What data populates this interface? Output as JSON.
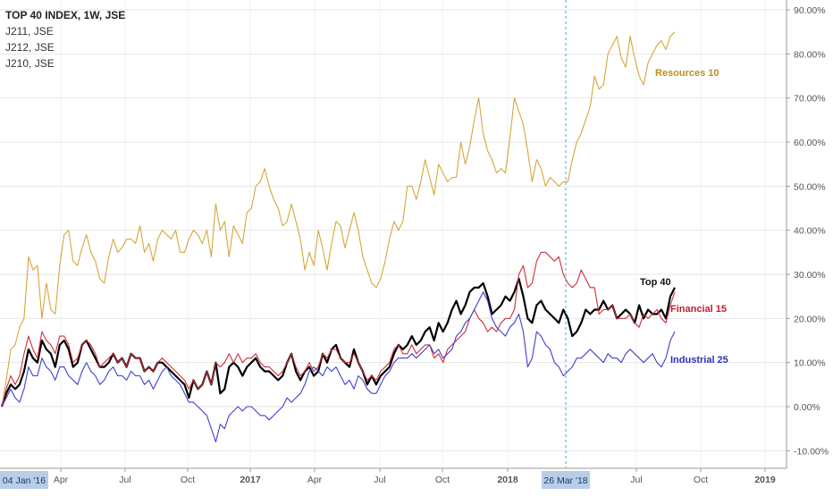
{
  "legend": {
    "line1": "TOP 40 INDEX, 1W, JSE",
    "line2": "J211, JSE",
    "line3": "J212, JSE",
    "line4": "J210, JSE"
  },
  "colors": {
    "top40": "#000000",
    "financial": "#cc2f3a",
    "industrial": "#3f3fcf",
    "resources": "#d4a73a",
    "grid": "#e6e6e6",
    "crosshair": "#4aa3df",
    "badge_bg": "#b7cde8",
    "badge_text": "#1d3c66"
  },
  "chart_data": {
    "type": "line",
    "y_unit": "%",
    "ylim": [
      -12,
      91
    ],
    "y_ticks": [
      "90.00%",
      "80.00%",
      "70.00%",
      "60.00%",
      "50.00%",
      "40.00%",
      "30.00%",
      "20.00%",
      "10.00%",
      "0.00%",
      "-10.00%"
    ],
    "x_ticks": [
      "Apr",
      "Jul",
      "Oct",
      "2017",
      "Apr",
      "Jul",
      "Oct",
      "2018",
      "Jul",
      "Oct",
      "2019"
    ],
    "x_start_label": "04 Jan '16",
    "crosshair_label": "26 Mar '18",
    "series": [
      {
        "name": "Resources 10",
        "color": "#d4a73a",
        "values": [
          0,
          6,
          13,
          14,
          18,
          20,
          34,
          31,
          32,
          20,
          28,
          22,
          21,
          32,
          39,
          40,
          33,
          32,
          36,
          39,
          35,
          33,
          29,
          28,
          34,
          38,
          35,
          36,
          38,
          38,
          37,
          41,
          35,
          37,
          33,
          38,
          40,
          39,
          38,
          40,
          35,
          35,
          38,
          40,
          39,
          37,
          40,
          34,
          46,
          40,
          42,
          34,
          41,
          39,
          37,
          44,
          45,
          50,
          51,
          54,
          50,
          47,
          45,
          41,
          42,
          46,
          42,
          38,
          31,
          35,
          32,
          40,
          36,
          31,
          37,
          42,
          41,
          36,
          40,
          44,
          40,
          34,
          31,
          28,
          27,
          29,
          33,
          38,
          42,
          40,
          42,
          50,
          50,
          47,
          51,
          56,
          52,
          48,
          55,
          53,
          51,
          52,
          52,
          60,
          55,
          59,
          65,
          70,
          62,
          58,
          56,
          53,
          54,
          53,
          61,
          70,
          67,
          64,
          58,
          51,
          56,
          54,
          50,
          52,
          51,
          50,
          51,
          51,
          56,
          60,
          62,
          65,
          68,
          75,
          72,
          73,
          80,
          82,
          84,
          79,
          77,
          84,
          79,
          75,
          73,
          78,
          80,
          82,
          83,
          81,
          84,
          85
        ]
      },
      {
        "name": "Top 40",
        "color": "#000000",
        "values": [
          0,
          3,
          5,
          4,
          5,
          8,
          13,
          11,
          10,
          15,
          13,
          12,
          9,
          14,
          15,
          13,
          9,
          10,
          14,
          15,
          13,
          11,
          9,
          9,
          10,
          12,
          10,
          11,
          9,
          12,
          11,
          11,
          8,
          9,
          8,
          10,
          10,
          9,
          8,
          7,
          6,
          5,
          2,
          6,
          4,
          5,
          8,
          5,
          10,
          3,
          4,
          9,
          10,
          9,
          7,
          9,
          10,
          11,
          9,
          8,
          8,
          7,
          6,
          7,
          10,
          12,
          8,
          6,
          8,
          9,
          7,
          8,
          12,
          10,
          13,
          14,
          11,
          10,
          9,
          13,
          10,
          8,
          5,
          7,
          5,
          7,
          8,
          9,
          12,
          14,
          13,
          14,
          16,
          14,
          15,
          17,
          18,
          15,
          19,
          17,
          19,
          22,
          24,
          21,
          23,
          26,
          27,
          27,
          28,
          25,
          21,
          22,
          23,
          25,
          24,
          26,
          29,
          25,
          20,
          19,
          23,
          24,
          22,
          21,
          20,
          19,
          22,
          20,
          16,
          17,
          19,
          22,
          21,
          22,
          22,
          24,
          22,
          23,
          20,
          21,
          22,
          21,
          19,
          23,
          20,
          22,
          21,
          21,
          22,
          20,
          25,
          27
        ]
      },
      {
        "name": "Financial 15",
        "color": "#cc2f3a",
        "values": [
          0,
          4,
          7,
          5,
          7,
          12,
          16,
          13,
          11,
          17,
          15,
          14,
          12,
          16,
          16,
          14,
          10,
          11,
          14,
          15,
          14,
          12,
          9,
          10,
          11,
          12,
          10,
          11,
          9,
          12,
          11,
          11,
          8,
          9,
          8,
          10,
          11,
          10,
          9,
          8,
          7,
          6,
          4,
          6,
          4,
          5,
          8,
          5,
          10,
          9,
          10,
          12,
          10,
          12,
          10,
          11,
          11,
          12,
          10,
          9,
          9,
          8,
          7,
          8,
          10,
          12,
          9,
          7,
          8,
          10,
          8,
          9,
          12,
          11,
          13,
          13,
          11,
          10,
          10,
          12,
          10,
          8,
          6,
          7,
          6,
          8,
          9,
          10,
          13,
          14,
          12,
          12,
          14,
          12,
          13,
          14,
          14,
          11,
          12,
          10,
          13,
          14,
          15,
          16,
          17,
          20,
          22,
          20,
          19,
          17,
          18,
          17,
          19,
          20,
          20,
          22,
          30,
          32,
          27,
          28,
          33,
          35,
          35,
          34,
          33,
          34,
          30,
          28,
          27,
          28,
          31,
          29,
          27,
          27,
          21,
          22,
          22,
          23,
          20,
          20,
          20,
          21,
          19,
          18,
          21,
          20,
          21,
          22,
          20,
          19,
          23,
          26
        ]
      },
      {
        "name": "Industrial 25",
        "color": "#3f3fcf",
        "values": [
          0,
          2,
          4,
          2,
          1,
          4,
          9,
          7,
          7,
          11,
          9,
          8,
          6,
          9,
          9,
          7,
          6,
          5,
          8,
          10,
          8,
          7,
          5,
          6,
          8,
          9,
          7,
          7,
          6,
          8,
          7,
          7,
          5,
          6,
          4,
          6,
          8,
          9,
          7,
          6,
          5,
          3,
          1,
          1,
          0,
          -1,
          -2,
          -5,
          -8,
          -4,
          -5,
          -2,
          -1,
          0,
          -1,
          0,
          0,
          -1,
          -2,
          -2,
          -3,
          -2,
          -1,
          0,
          2,
          1,
          2,
          3,
          5,
          8,
          9,
          8,
          7,
          9,
          8,
          9,
          7,
          5,
          6,
          4,
          7,
          6,
          4,
          3,
          3,
          5,
          7,
          8,
          10,
          11,
          11,
          11,
          12,
          11,
          12,
          13,
          14,
          12,
          13,
          11,
          12,
          13,
          16,
          17,
          19,
          20,
          22,
          24,
          26,
          24,
          20,
          18,
          17,
          16,
          18,
          19,
          21,
          17,
          9,
          11,
          17,
          16,
          14,
          13,
          10,
          9,
          7,
          8,
          9,
          11,
          11,
          12,
          13,
          12,
          11,
          10,
          12,
          11,
          11,
          10,
          12,
          13,
          12,
          11,
          10,
          11,
          12,
          10,
          9,
          11,
          15,
          17
        ]
      }
    ],
    "annotations": [
      {
        "text": "Resources 10",
        "color": "#b9901d"
      },
      {
        "text": "Top 40",
        "color": "#111111"
      },
      {
        "text": "Financial 15",
        "color": "#c0202e"
      },
      {
        "text": "Industrial 25",
        "color": "#2f2fb8"
      }
    ]
  }
}
